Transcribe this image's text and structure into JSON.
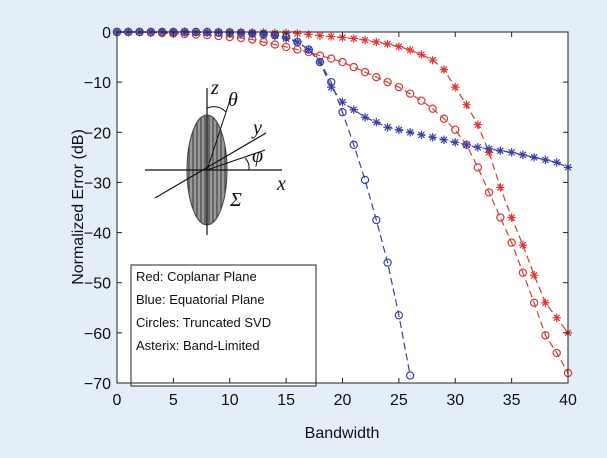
{
  "chart_data": {
    "type": "line",
    "x_label": "Bandwidth",
    "y_label": "Normalized Error (dB)",
    "xlim": [
      0,
      40
    ],
    "ylim": [
      -70,
      0
    ],
    "xticks": [
      0,
      5,
      10,
      15,
      20,
      25,
      30,
      35,
      40
    ],
    "yticks": [
      0,
      {
        "value": -10,
        "label": "−10"
      },
      {
        "value": -20,
        "label": "−20"
      },
      {
        "value": -30,
        "label": "−30"
      },
      {
        "value": -40,
        "label": "−40"
      },
      {
        "value": -50,
        "label": "−50"
      },
      {
        "value": -60,
        "label": "−60"
      },
      {
        "value": -70,
        "label": "−70"
      }
    ],
    "grid": false,
    "annotations": [
      "Red: Coplanar Plane",
      "Blue: Equatorial Plane",
      "Circles: Truncated SVD",
      "Asterix: Band-Limited"
    ],
    "inset_labels": [
      "z",
      "θ",
      "y",
      "φ",
      "x",
      "Σ"
    ],
    "x": [
      0,
      1,
      2,
      3,
      4,
      5,
      6,
      7,
      8,
      9,
      10,
      11,
      12,
      13,
      14,
      15,
      16,
      17,
      18,
      19,
      20,
      21,
      22,
      23,
      24,
      25,
      26,
      27,
      28,
      29,
      30,
      31,
      32,
      33,
      34,
      35,
      36,
      37,
      38,
      39,
      40
    ],
    "series": [
      {
        "color": "#d93a35",
        "marker": "asterisk",
        "values": [
          0,
          0,
          0,
          0,
          0,
          0,
          0,
          0,
          0,
          0,
          0,
          0,
          -0.1,
          -0.1,
          -0.2,
          -0.2,
          -0.3,
          -0.5,
          -0.7,
          -0.9,
          -1.1,
          -1.3,
          -1.6,
          -2,
          -2.4,
          -2.9,
          -3.6,
          -4.5,
          -5.6,
          -7.5,
          -11,
          -14.5,
          -18.5,
          -24,
          -31,
          -37,
          -42.5,
          -48.5,
          -54,
          -57,
          -60
        ]
      },
      {
        "color": "#d93a35",
        "marker": "circle",
        "values": [
          0,
          0,
          0,
          -0.1,
          -0.2,
          -0.3,
          -0.4,
          -0.5,
          -0.6,
          -0.8,
          -1,
          -1.2,
          -1.5,
          -2,
          -2.5,
          -3,
          -3.5,
          -4,
          -4.7,
          -5.3,
          -6,
          -7,
          -8,
          -9,
          -10,
          -11,
          -12.3,
          -13.7,
          -15.3,
          -17.3,
          -19.5,
          -22.5,
          -27,
          -32,
          -37,
          -42,
          -48,
          -54,
          -60.5,
          -64,
          -68
        ]
      },
      {
        "color": "#3b3fa6",
        "marker": "asterisk",
        "values": [
          0,
          0,
          0,
          0,
          0,
          0,
          0,
          0,
          -0.1,
          -0.1,
          -0.2,
          -0.3,
          -0.4,
          -0.6,
          -0.8,
          -1.3,
          -2,
          -3.5,
          -6,
          -11,
          -14,
          -15.5,
          -17,
          -18,
          -19,
          -19.5,
          -20,
          -20.5,
          -21,
          -21.5,
          -22,
          -22.5,
          -23,
          -23.3,
          -23.7,
          -24,
          -24.5,
          -25,
          -25.5,
          -26,
          -27
        ]
      },
      {
        "color": "#3b3fa6",
        "marker": "circle",
        "values": [
          0,
          0,
          0,
          0,
          0,
          0,
          0,
          0,
          0,
          -0.1,
          -0.1,
          -0.2,
          -0.3,
          -0.4,
          -0.6,
          -1,
          -2,
          -3.5,
          -6,
          -10,
          -16,
          -22.5,
          -29.5,
          -37.5,
          -46,
          -56.5,
          -68.5,
          null,
          null,
          null,
          null,
          null,
          null,
          null,
          null,
          null,
          null,
          null,
          null,
          null,
          null
        ]
      }
    ]
  }
}
